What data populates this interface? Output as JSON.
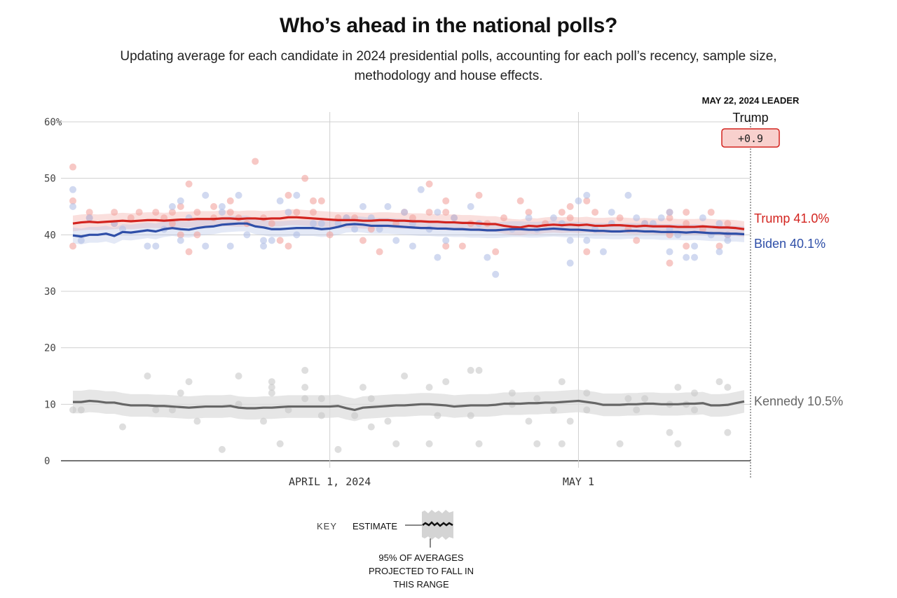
{
  "header": {
    "title": "Who’s ahead in the national polls?",
    "subtitle": "Updating average for each candidate in 2024 presidential polls, accounting for each poll’s recency, sample size, methodology and house effects."
  },
  "leader": {
    "heading": "MAY 22, 2024 LEADER",
    "name": "Trump",
    "margin": "+0.9"
  },
  "key": {
    "label": "KEY",
    "estimate_label": "ESTIMATE",
    "range_line1": "95% OF AVERAGES",
    "range_line2": "PROJECTED TO FALL IN",
    "range_line3": "THIS RANGE"
  },
  "colors": {
    "trump": "#d3241f",
    "biden": "#2f4fa8",
    "kennedy": "#666666",
    "trump_dot": "#f2a49e",
    "biden_dot": "#b3bfe6",
    "kennedy_dot": "#c8c8c8"
  },
  "chart_data": {
    "type": "line",
    "title": "Who’s ahead in the national polls?",
    "xlabel": "",
    "ylabel": "",
    "ylim": [
      0,
      60
    ],
    "yticks": [
      0,
      10,
      20,
      30,
      40,
      50,
      60
    ],
    "ytick_labels": [
      "0",
      "10",
      "20",
      "30",
      "40",
      "50",
      "60%"
    ],
    "x_start": "2024-03-01",
    "x_end": "2024-05-22",
    "x_days": 82,
    "xticks": [
      {
        "day": 31,
        "label": "APRIL 1, 2024"
      },
      {
        "day": 61,
        "label": "MAY 1"
      }
    ],
    "series": [
      {
        "name": "Trump",
        "end_label": "Trump 41.0%",
        "band": 1.4,
        "values": [
          42.0,
          42.2,
          42.3,
          42.2,
          42.3,
          42.4,
          42.5,
          42.4,
          42.5,
          42.6,
          42.6,
          42.5,
          42.6,
          42.7,
          42.7,
          42.8,
          42.8,
          42.8,
          42.9,
          42.9,
          42.8,
          42.9,
          42.9,
          42.8,
          42.9,
          42.9,
          43.1,
          43.1,
          43.0,
          42.9,
          42.8,
          42.7,
          42.6,
          42.6,
          42.6,
          42.5,
          42.5,
          42.6,
          42.6,
          42.5,
          42.5,
          42.4,
          42.4,
          42.3,
          42.3,
          42.2,
          42.2,
          42.1,
          42.1,
          42.0,
          41.9,
          41.9,
          41.6,
          41.4,
          41.3,
          41.6,
          41.5,
          41.7,
          41.8,
          41.7,
          41.8,
          41.7,
          41.8,
          41.6,
          41.6,
          41.7,
          41.7,
          41.6,
          41.5,
          41.6,
          41.5,
          41.5,
          41.5,
          41.4,
          41.4,
          41.4,
          41.5,
          41.4,
          41.3,
          41.3,
          41.2,
          41.0
        ]
      },
      {
        "name": "Biden",
        "end_label": "Biden 40.1%",
        "band": 1.4,
        "values": [
          39.9,
          39.7,
          40.0,
          40.0,
          40.2,
          39.8,
          40.5,
          40.4,
          40.6,
          40.8,
          40.6,
          41.0,
          41.2,
          41.0,
          40.9,
          41.2,
          41.4,
          41.5,
          41.8,
          41.9,
          42.0,
          42.0,
          41.5,
          41.3,
          41.0,
          41.0,
          41.1,
          41.2,
          41.2,
          41.2,
          41.0,
          41.1,
          41.4,
          41.8,
          41.9,
          41.8,
          41.6,
          41.6,
          41.6,
          41.5,
          41.4,
          41.3,
          41.2,
          41.2,
          41.1,
          41.1,
          41.0,
          41.0,
          40.9,
          40.9,
          40.8,
          40.8,
          40.9,
          41.0,
          41.0,
          40.9,
          40.9,
          41.0,
          41.1,
          41.0,
          40.9,
          40.9,
          40.8,
          40.7,
          40.7,
          40.6,
          40.6,
          40.7,
          40.7,
          40.6,
          40.6,
          40.5,
          40.5,
          40.5,
          40.4,
          40.5,
          40.4,
          40.3,
          40.3,
          40.2,
          40.2,
          40.1
        ]
      },
      {
        "name": "Kennedy",
        "end_label": "Kennedy 10.5%",
        "band": 2.0,
        "values": [
          10.4,
          10.4,
          10.6,
          10.5,
          10.3,
          10.3,
          10.0,
          9.8,
          9.8,
          9.8,
          9.7,
          9.7,
          9.6,
          9.5,
          9.4,
          9.5,
          9.6,
          9.6,
          9.6,
          9.7,
          9.4,
          9.3,
          9.3,
          9.4,
          9.4,
          9.5,
          9.6,
          9.6,
          9.6,
          9.6,
          9.6,
          9.6,
          9.7,
          9.3,
          9.0,
          9.4,
          9.5,
          9.6,
          9.7,
          9.8,
          9.8,
          9.9,
          10.0,
          10.0,
          9.9,
          9.8,
          9.6,
          9.7,
          9.8,
          9.8,
          9.8,
          9.9,
          10.1,
          10.1,
          10.1,
          10.2,
          10.2,
          10.3,
          10.3,
          10.4,
          10.5,
          10.6,
          10.4,
          10.2,
          9.9,
          9.9,
          9.9,
          10.0,
          10.0,
          10.1,
          10.1,
          10.0,
          10.0,
          10.0,
          10.1,
          10.1,
          10.2,
          9.8,
          9.8,
          9.9,
          10.2,
          10.5
        ]
      }
    ],
    "polls": {
      "Trump": [
        [
          0,
          52
        ],
        [
          0,
          46
        ],
        [
          0,
          38
        ],
        [
          2,
          44
        ],
        [
          2,
          43
        ],
        [
          5,
          44
        ],
        [
          5,
          42
        ],
        [
          7,
          43
        ],
        [
          8,
          44
        ],
        [
          10,
          44
        ],
        [
          11,
          43
        ],
        [
          12,
          44
        ],
        [
          12,
          42
        ],
        [
          13,
          40
        ],
        [
          13,
          45
        ],
        [
          14,
          49
        ],
        [
          14,
          37
        ],
        [
          15,
          44
        ],
        [
          15,
          40
        ],
        [
          17,
          45
        ],
        [
          17,
          43
        ],
        [
          19,
          46
        ],
        [
          19,
          44
        ],
        [
          20,
          43
        ],
        [
          21,
          42
        ],
        [
          22,
          53
        ],
        [
          23,
          43
        ],
        [
          24,
          42
        ],
        [
          25,
          39
        ],
        [
          26,
          47
        ],
        [
          26,
          38
        ],
        [
          27,
          44
        ],
        [
          28,
          50
        ],
        [
          29,
          46
        ],
        [
          29,
          44
        ],
        [
          30,
          46
        ],
        [
          31,
          40
        ],
        [
          32,
          43
        ],
        [
          33,
          43
        ],
        [
          34,
          43
        ],
        [
          35,
          39
        ],
        [
          36,
          41
        ],
        [
          37,
          37
        ],
        [
          39,
          42
        ],
        [
          40,
          44
        ],
        [
          41,
          43
        ],
        [
          43,
          49
        ],
        [
          43,
          44
        ],
        [
          45,
          46
        ],
        [
          45,
          44
        ],
        [
          45,
          38
        ],
        [
          46,
          43
        ],
        [
          47,
          38
        ],
        [
          48,
          42
        ],
        [
          49,
          47
        ],
        [
          50,
          42
        ],
        [
          51,
          37
        ],
        [
          52,
          43
        ],
        [
          54,
          46
        ],
        [
          55,
          44
        ],
        [
          57,
          42
        ],
        [
          59,
          44
        ],
        [
          60,
          43
        ],
        [
          60,
          45
        ],
        [
          62,
          46
        ],
        [
          62,
          37
        ],
        [
          63,
          44
        ],
        [
          66,
          43
        ],
        [
          67,
          41
        ],
        [
          68,
          39
        ],
        [
          69,
          42
        ],
        [
          72,
          44
        ],
        [
          72,
          43
        ],
        [
          72,
          40
        ],
        [
          72,
          35
        ],
        [
          74,
          42
        ],
        [
          74,
          38
        ],
        [
          74,
          44
        ],
        [
          76,
          41
        ],
        [
          77,
          44
        ],
        [
          78,
          38
        ],
        [
          79,
          40
        ],
        [
          79,
          42
        ]
      ],
      "Biden": [
        [
          0,
          48
        ],
        [
          0,
          45
        ],
        [
          1,
          39
        ],
        [
          2,
          43
        ],
        [
          5,
          42
        ],
        [
          6,
          41
        ],
        [
          9,
          38
        ],
        [
          10,
          38
        ],
        [
          11,
          41
        ],
        [
          12,
          45
        ],
        [
          13,
          46
        ],
        [
          13,
          39
        ],
        [
          14,
          43
        ],
        [
          16,
          47
        ],
        [
          16,
          38
        ],
        [
          18,
          45
        ],
        [
          18,
          44
        ],
        [
          19,
          38
        ],
        [
          20,
          47
        ],
        [
          21,
          40
        ],
        [
          23,
          39
        ],
        [
          23,
          38
        ],
        [
          24,
          39
        ],
        [
          25,
          46
        ],
        [
          26,
          44
        ],
        [
          27,
          47
        ],
        [
          27,
          40
        ],
        [
          29,
          42
        ],
        [
          30,
          42
        ],
        [
          32,
          42
        ],
        [
          33,
          43
        ],
        [
          34,
          41
        ],
        [
          35,
          45
        ],
        [
          36,
          43
        ],
        [
          37,
          41
        ],
        [
          38,
          45
        ],
        [
          39,
          39
        ],
        [
          40,
          44
        ],
        [
          41,
          42
        ],
        [
          41,
          38
        ],
        [
          42,
          48
        ],
        [
          43,
          41
        ],
        [
          44,
          36
        ],
        [
          44,
          44
        ],
        [
          45,
          39
        ],
        [
          46,
          43
        ],
        [
          48,
          45
        ],
        [
          49,
          42
        ],
        [
          50,
          36
        ],
        [
          51,
          33
        ],
        [
          53,
          41
        ],
        [
          55,
          43
        ],
        [
          56,
          41
        ],
        [
          58,
          43
        ],
        [
          59,
          42
        ],
        [
          60,
          35
        ],
        [
          60,
          39
        ],
        [
          61,
          46
        ],
        [
          62,
          47
        ],
        [
          62,
          39
        ],
        [
          63,
          41
        ],
        [
          64,
          37
        ],
        [
          65,
          44
        ],
        [
          65,
          42
        ],
        [
          67,
          47
        ],
        [
          68,
          43
        ],
        [
          69,
          42
        ],
        [
          70,
          42
        ],
        [
          71,
          43
        ],
        [
          72,
          37
        ],
        [
          72,
          44
        ],
        [
          72,
          41
        ],
        [
          73,
          40
        ],
        [
          74,
          36
        ],
        [
          75,
          38
        ],
        [
          75,
          36
        ],
        [
          76,
          43
        ],
        [
          77,
          40
        ],
        [
          78,
          42
        ],
        [
          78,
          37
        ],
        [
          79,
          39
        ],
        [
          79,
          40
        ]
      ],
      "Kennedy": [
        [
          0,
          9
        ],
        [
          1,
          9
        ],
        [
          6,
          6
        ],
        [
          9,
          15
        ],
        [
          10,
          9
        ],
        [
          12,
          9
        ],
        [
          13,
          12
        ],
        [
          14,
          14
        ],
        [
          15,
          7
        ],
        [
          18,
          2
        ],
        [
          20,
          10
        ],
        [
          20,
          15
        ],
        [
          23,
          7
        ],
        [
          24,
          12
        ],
        [
          24,
          13
        ],
        [
          24,
          14
        ],
        [
          25,
          3
        ],
        [
          26,
          9
        ],
        [
          28,
          11
        ],
        [
          28,
          13
        ],
        [
          28,
          16
        ],
        [
          30,
          11
        ],
        [
          30,
          8
        ],
        [
          32,
          2
        ],
        [
          34,
          8
        ],
        [
          35,
          13
        ],
        [
          36,
          11
        ],
        [
          36,
          6
        ],
        [
          38,
          7
        ],
        [
          39,
          3
        ],
        [
          40,
          15
        ],
        [
          43,
          3
        ],
        [
          43,
          13
        ],
        [
          44,
          8
        ],
        [
          45,
          14
        ],
        [
          48,
          16
        ],
        [
          48,
          8
        ],
        [
          49,
          16
        ],
        [
          49,
          3
        ],
        [
          53,
          12
        ],
        [
          53,
          10
        ],
        [
          55,
          7
        ],
        [
          56,
          11
        ],
        [
          56,
          3
        ],
        [
          58,
          9
        ],
        [
          59,
          14
        ],
        [
          59,
          3
        ],
        [
          60,
          7
        ],
        [
          62,
          9
        ],
        [
          62,
          12
        ],
        [
          66,
          3
        ],
        [
          67,
          11
        ],
        [
          68,
          9
        ],
        [
          69,
          11
        ],
        [
          72,
          5
        ],
        [
          72,
          10
        ],
        [
          73,
          3
        ],
        [
          73,
          13
        ],
        [
          74,
          10
        ],
        [
          75,
          12
        ],
        [
          75,
          9
        ],
        [
          78,
          14
        ],
        [
          79,
          5
        ],
        [
          79,
          13
        ]
      ]
    }
  }
}
